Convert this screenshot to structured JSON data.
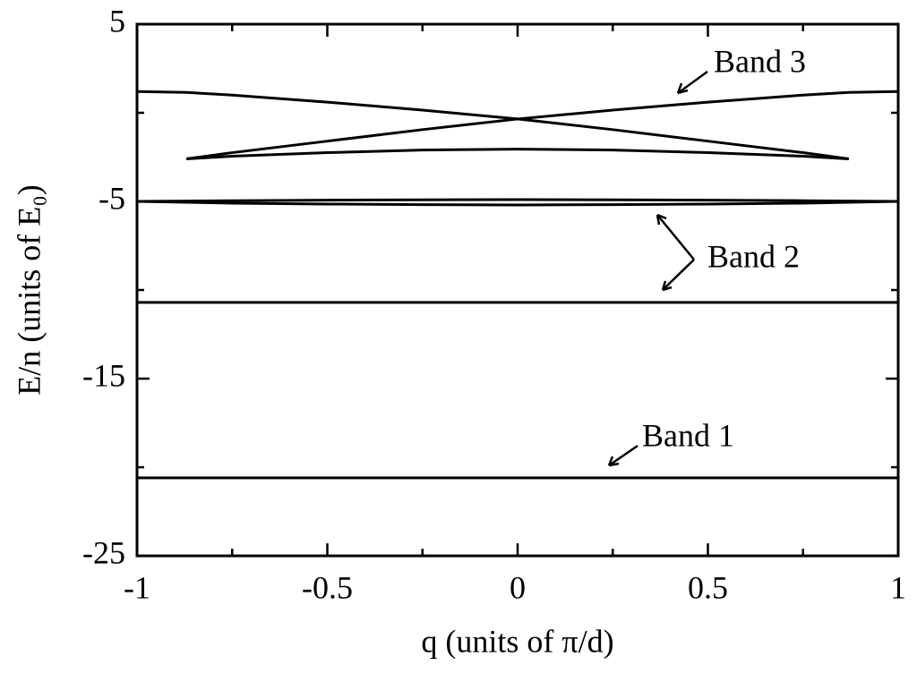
{
  "chart_data": {
    "type": "line",
    "xlabel": "q (units of π/d)",
    "ylabel": "E/n (units of E₀)",
    "x": [
      -1,
      -0.87,
      -0.75,
      -0.5,
      -0.25,
      0,
      0.25,
      0.5,
      0.75,
      0.87,
      1
    ],
    "series": [
      {
        "color": "#000000",
        "values": [
          1.2,
          1.15,
          1.0,
          0.6,
          0.15,
          -0.35,
          -0.95,
          -1.6,
          -2.25,
          -2.6,
          null
        ]
      },
      {
        "color": "#000000",
        "values": [
          null,
          -2.6,
          -2.25,
          -1.6,
          -0.95,
          -0.35,
          0.15,
          0.6,
          1.0,
          1.15,
          1.2
        ]
      },
      {
        "color": "#000000",
        "values": [
          null,
          -2.6,
          -2.45,
          -2.25,
          -2.1,
          -2.05,
          -2.1,
          -2.25,
          -2.45,
          -2.6,
          null
        ]
      },
      {
        "color": "#000000",
        "values": [
          -5,
          -4.98,
          -4.96,
          -4.93,
          -4.91,
          -4.9,
          -4.91,
          -4.93,
          -4.96,
          -4.98,
          -5
        ]
      },
      {
        "color": "#000000",
        "values": [
          -5,
          -5.05,
          -5.1,
          -5.15,
          -5.18,
          -5.2,
          -5.18,
          -5.15,
          -5.1,
          -5.05,
          -5
        ]
      },
      {
        "color": "#000000",
        "values": [
          -10.7,
          -10.7,
          -10.7,
          -10.7,
          -10.7,
          -10.7,
          -10.7,
          -10.7,
          -10.7,
          -10.7,
          -10.7
        ]
      },
      {
        "color": "#000000",
        "values": [
          -20.6,
          -20.6,
          -20.6,
          -20.6,
          -20.6,
          -20.6,
          -20.6,
          -20.6,
          -20.6,
          -20.6,
          -20.6
        ]
      }
    ],
    "annotations": [
      "Band 3",
      "Band 2",
      "Band 1"
    ],
    "xlim": [
      -1,
      1
    ],
    "xticks": [
      -1,
      -0.5,
      0,
      0.5,
      1
    ],
    "xminor_ticks": [
      -0.75,
      -0.25,
      0.25,
      0.75
    ],
    "ylim": [
      -25,
      5
    ],
    "yticks": [
      -25,
      -15,
      -5,
      5
    ],
    "yminor_ticks": [
      -20,
      -10,
      0
    ],
    "grid": false
  }
}
